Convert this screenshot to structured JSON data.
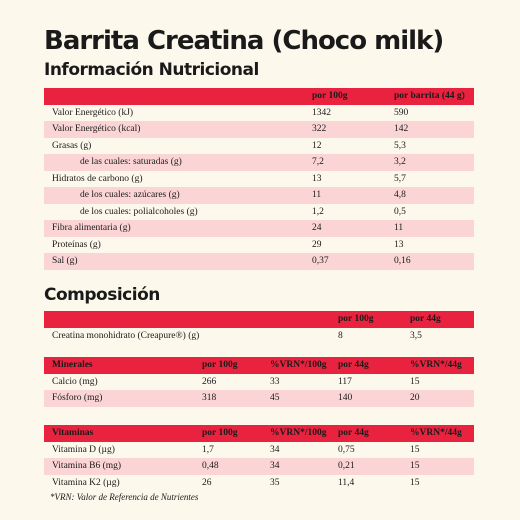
{
  "title": "Barrita Creatina (Choco milk)",
  "nutrition": {
    "heading": "Información Nutricional",
    "columns": [
      "",
      "por 100g",
      "por barrita (44 g)"
    ],
    "rows": [
      {
        "label": "Valor Energético (kJ)",
        "per100": "1342",
        "perBar": "590",
        "indent": false
      },
      {
        "label": "Valor Energético (kcal)",
        "per100": "322",
        "perBar": "142",
        "indent": false
      },
      {
        "label": "Grasas (g)",
        "per100": "12",
        "perBar": "5,3",
        "indent": false
      },
      {
        "label": "de las cuales: saturadas (g)",
        "per100": "7,2",
        "perBar": "3,2",
        "indent": true
      },
      {
        "label": "Hidratos de carbono (g)",
        "per100": "13",
        "perBar": "5,7",
        "indent": false
      },
      {
        "label": "de los cuales: azúcares (g)",
        "per100": "11",
        "perBar": "4,8",
        "indent": true
      },
      {
        "label": "de los cuales: polialcoholes (g)",
        "per100": "1,2",
        "perBar": "0,5",
        "indent": true
      },
      {
        "label": "Fibra alimentaria (g)",
        "per100": "24",
        "perBar": "11",
        "indent": false
      },
      {
        "label": "Proteínas (g)",
        "per100": "29",
        "perBar": "13",
        "indent": false
      },
      {
        "label": "Sal (g)",
        "per100": "0,37",
        "perBar": "0,16",
        "indent": false
      }
    ]
  },
  "composition": {
    "heading": "Composición",
    "creatine": {
      "columns": [
        "",
        "por 100g",
        "por 44g"
      ],
      "rows": [
        {
          "label": "Creatina monohidrato (Creapure®) (g)",
          "per100": "8",
          "per44": "3,5"
        }
      ]
    },
    "minerals": {
      "columns": [
        "Minerales",
        "por 100g",
        "%VRN*/100g",
        "por 44g",
        "%VRN*/44g"
      ],
      "rows": [
        {
          "label": "Calcio (mg)",
          "per100": "266",
          "vrn100": "33",
          "per44": "117",
          "vrn44": "15"
        },
        {
          "label": "Fósforo (mg)",
          "per100": "318",
          "vrn100": "45",
          "per44": "140",
          "vrn44": "20"
        }
      ]
    },
    "vitamins": {
      "columns": [
        "Vitaminas",
        "por 100g",
        "%VRN*/100g",
        "por 44g",
        "%VRN*/44g"
      ],
      "rows": [
        {
          "label": "Vitamina D (µg)",
          "per100": "1,7",
          "vrn100": "34",
          "per44": "0,75",
          "vrn44": "15"
        },
        {
          "label": "Vitamina B6 (mg)",
          "per100": "0,48",
          "vrn100": "34",
          "per44": "0,21",
          "vrn44": "15"
        },
        {
          "label": "Vitamina K2 (µg)",
          "per100": "26",
          "vrn100": "35",
          "per44": "11,4",
          "vrn44": "15"
        }
      ]
    },
    "footnote": "*VRN: Valor de Referencia de Nutrientes"
  },
  "colors": {
    "header": "#e8223f",
    "stripe": "#fbd5d6",
    "background": "#fdf8ec"
  }
}
